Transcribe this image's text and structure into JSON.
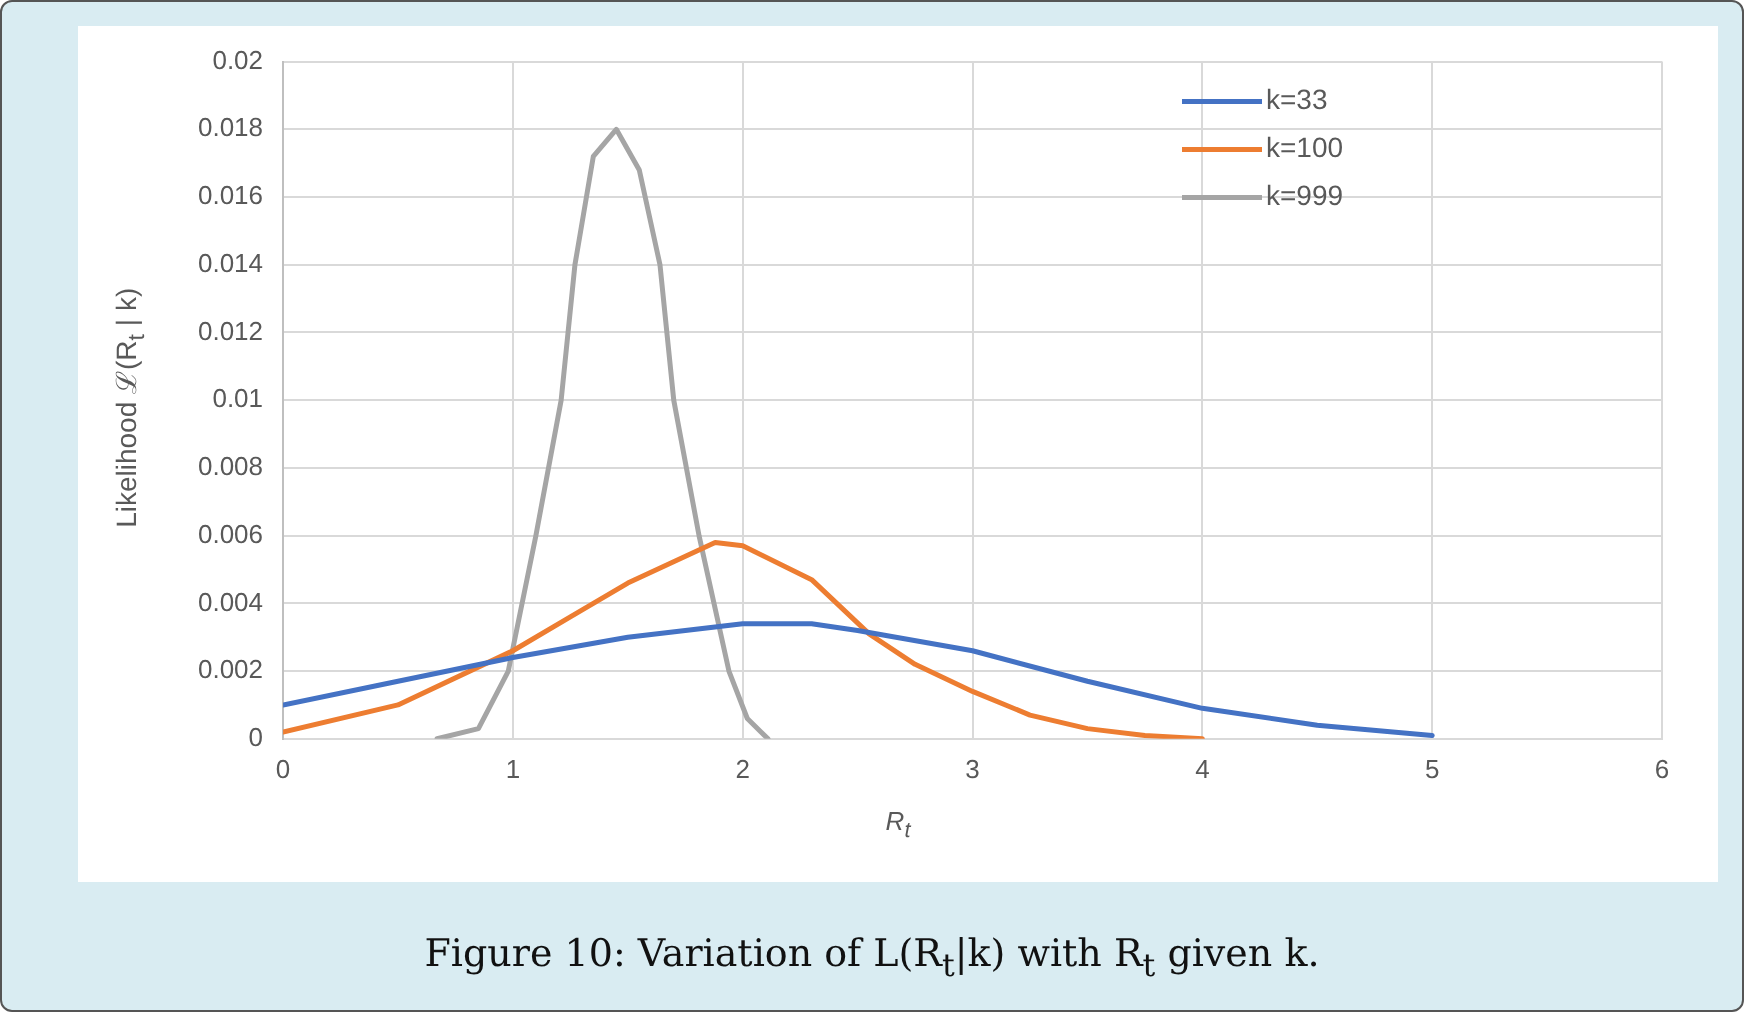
{
  "chart_data": {
    "type": "line",
    "title": "Figure 10: Variation of L(R$_{t}$|k) with R$_{t}$ given k.",
    "xlabel": "R$_{t}$",
    "ylabel": "Likelihood ℒ(R$_{t}$ | k)",
    "xlim": [
      0,
      6
    ],
    "xticks": [
      0,
      1,
      2,
      3,
      4,
      5,
      6
    ],
    "ylim": [
      0,
      0.02
    ],
    "yticks": [
      0,
      0.002,
      0.004,
      0.006,
      0.008,
      0.01,
      0.012,
      0.014,
      0.016,
      0.018,
      0.02
    ],
    "grid": true,
    "legend": "top right",
    "marker": "none",
    "line_style": "solid",
    "series": [
      {
        "name": "k=33",
        "color": "#4472c4",
        "x": [
          0,
          0.5,
          1,
          1.5,
          2,
          2.3,
          2.5,
          3,
          3.5,
          4,
          4.5,
          5
        ],
        "values": [
          0.001,
          0.0017,
          0.0024,
          0.003,
          0.0034,
          0.0034,
          0.0032,
          0.0026,
          0.0017,
          0.0009,
          0.0004,
          0.0001
        ]
      },
      {
        "name": "k=100",
        "color": "#ed7d31",
        "x": [
          0,
          0.5,
          1,
          1.25,
          1.5,
          1.88,
          2,
          2.3,
          2.55,
          2.75,
          3,
          3.25,
          3.5,
          3.75,
          4
        ],
        "values": [
          0.0002,
          0.001,
          0.0026,
          0.0036,
          0.0046,
          0.0058,
          0.0057,
          0.0047,
          0.0031,
          0.0022,
          0.0014,
          0.0007,
          0.0003,
          0.0001,
          0
        ]
      },
      {
        "name": "k=999",
        "color": "#a5a5a5",
        "x": [
          0.67,
          0.85,
          0.98,
          1.1,
          1.21,
          1.27,
          1.35,
          1.45,
          1.55,
          1.64,
          1.7,
          1.81,
          1.94,
          2.02,
          2.11
        ],
        "values": [
          0,
          0.0003,
          0.002,
          0.006,
          0.01,
          0.014,
          0.0172,
          0.018,
          0.0168,
          0.014,
          0.01,
          0.006,
          0.002,
          0.0006,
          0
        ]
      }
    ]
  }
}
